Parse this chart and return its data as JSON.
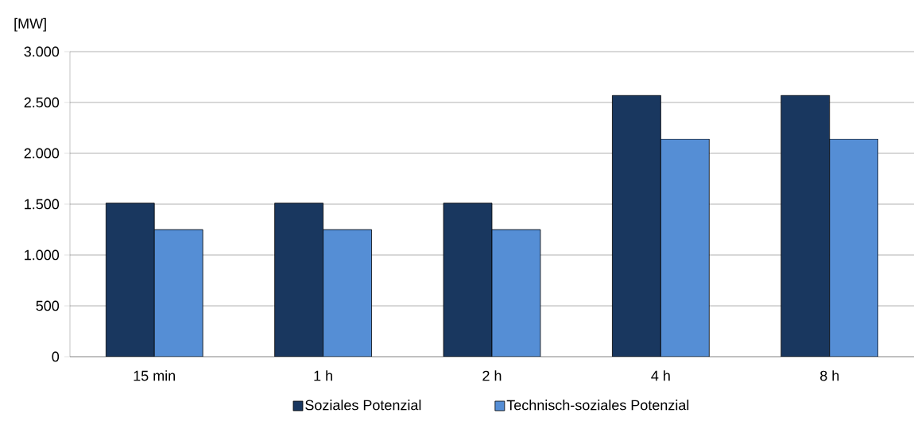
{
  "chart_data": {
    "type": "bar",
    "ylabel": "[MW]",
    "categories": [
      "15 min",
      "1 h",
      "2 h",
      "4 h",
      "8 h"
    ],
    "series": [
      {
        "name": "Soziales Potenzial",
        "color": "#19375f",
        "values": [
          1510,
          1510,
          1510,
          2570,
          2570
        ]
      },
      {
        "name": "Technisch-soziales Potenzial",
        "color": "#558ed5",
        "values": [
          1250,
          1250,
          1250,
          2140,
          2140
        ]
      }
    ],
    "ylim": [
      0,
      3000
    ],
    "yticks": [
      0,
      500,
      {
        "value": 1000,
        "label": "1.000"
      },
      {
        "value": 1500,
        "label": "1.500"
      },
      {
        "value": 2000,
        "label": "2.000"
      },
      {
        "value": 2500,
        "label": "2.500"
      },
      {
        "value": 3000,
        "label": "3.000"
      }
    ],
    "grid": "y",
    "legend": "bottom"
  }
}
